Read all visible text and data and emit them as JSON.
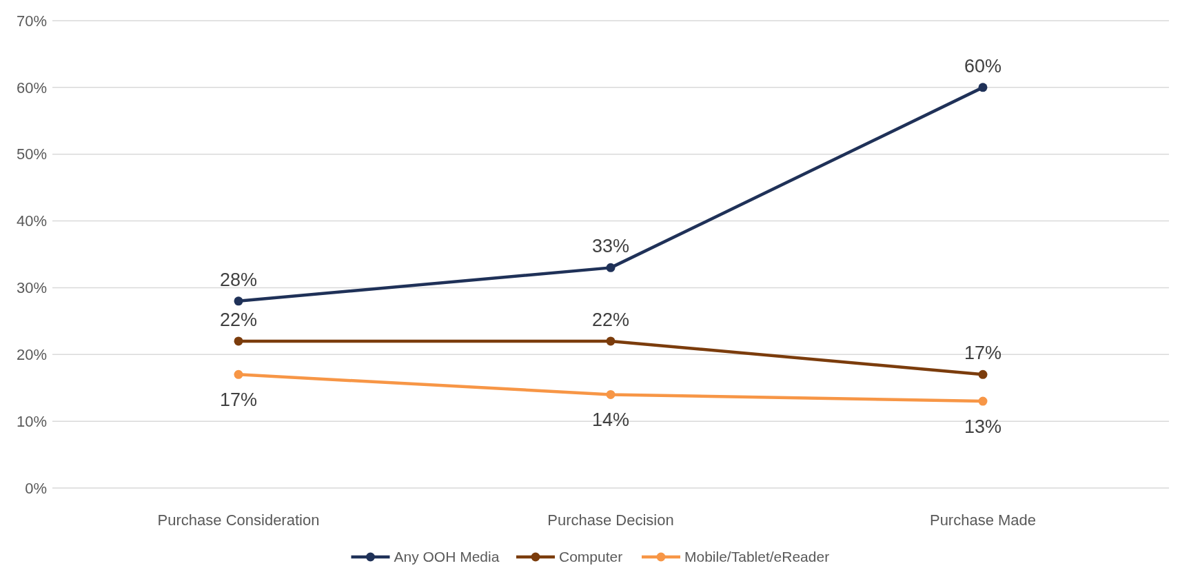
{
  "chart_data": {
    "type": "line",
    "categories": [
      "Purchase Consideration",
      "Purchase Decision",
      "Purchase Made"
    ],
    "series": [
      {
        "name": "Any OOH Media",
        "color": "#1f3158",
        "values": [
          28,
          33,
          60
        ],
        "value_labels": [
          "28%",
          "33%",
          "60%"
        ]
      },
      {
        "name": "Computer",
        "color": "#7b3c0c",
        "values": [
          22,
          22,
          17
        ],
        "value_labels": [
          "22%",
          "22%",
          "17%"
        ]
      },
      {
        "name": "Mobile/Tablet/eReader",
        "color": "#f79646",
        "values": [
          17,
          14,
          13
        ],
        "value_labels": [
          "17%",
          "14%",
          "13%"
        ]
      }
    ],
    "ylim": [
      0,
      70
    ],
    "yticks": [
      {
        "value": 0,
        "label": "0%"
      },
      {
        "value": 10,
        "label": "10%"
      },
      {
        "value": 20,
        "label": "20%"
      },
      {
        "value": 30,
        "label": "30%"
      },
      {
        "value": 40,
        "label": "40%"
      },
      {
        "value": 50,
        "label": "50%"
      },
      {
        "value": 60,
        "label": "60%"
      },
      {
        "value": 70,
        "label": "70%"
      }
    ],
    "grid": "y",
    "legend": "bottom",
    "marker": "circle",
    "line_style": "solid"
  }
}
